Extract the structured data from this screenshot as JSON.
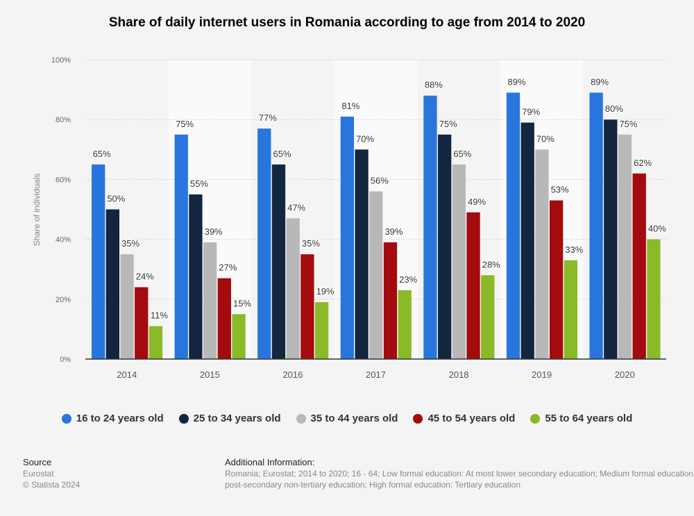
{
  "chart_data": {
    "type": "bar",
    "title": "Share of daily internet users in Romania according to age from 2014 to 2020",
    "ylabel": "Share of individuals",
    "xlabel": "",
    "ylim": [
      0,
      100
    ],
    "yticks": [
      "0%",
      "20%",
      "40%",
      "60%",
      "80%",
      "100%"
    ],
    "grid": true,
    "legend_position": "bottom",
    "categories": [
      "2014",
      "2015",
      "2016",
      "2017",
      "2018",
      "2019",
      "2020"
    ],
    "series": [
      {
        "name": "16 to 24 years old",
        "color": "#2876dd",
        "values": [
          65,
          75,
          77,
          81,
          88,
          89,
          89
        ]
      },
      {
        "name": "25 to 34 years old",
        "color": "#12263f",
        "values": [
          50,
          55,
          65,
          70,
          75,
          79,
          80
        ]
      },
      {
        "name": "35 to 44 years old",
        "color": "#b8b8b8",
        "values": [
          35,
          39,
          47,
          56,
          65,
          70,
          75
        ]
      },
      {
        "name": "45 to 54 years old",
        "color": "#a30b0f",
        "values": [
          24,
          27,
          35,
          39,
          49,
          53,
          62
        ]
      },
      {
        "name": "55 to 64 years old",
        "color": "#8aba27",
        "values": [
          11,
          15,
          19,
          23,
          28,
          33,
          40
        ]
      }
    ]
  },
  "footer": {
    "source_label": "Source",
    "source": "Eurostat",
    "copyright": "© Statista 2024",
    "info_label": "Additional Information:",
    "info_line1": "Romania; Eurostat; 2014 to 2020; 16 - 64; Low formal education: At most lower secondary education; Medium formal education: Upper secondary and",
    "info_line2": "post-secondary non-tertiary education; High formal education: Tertiary education"
  }
}
